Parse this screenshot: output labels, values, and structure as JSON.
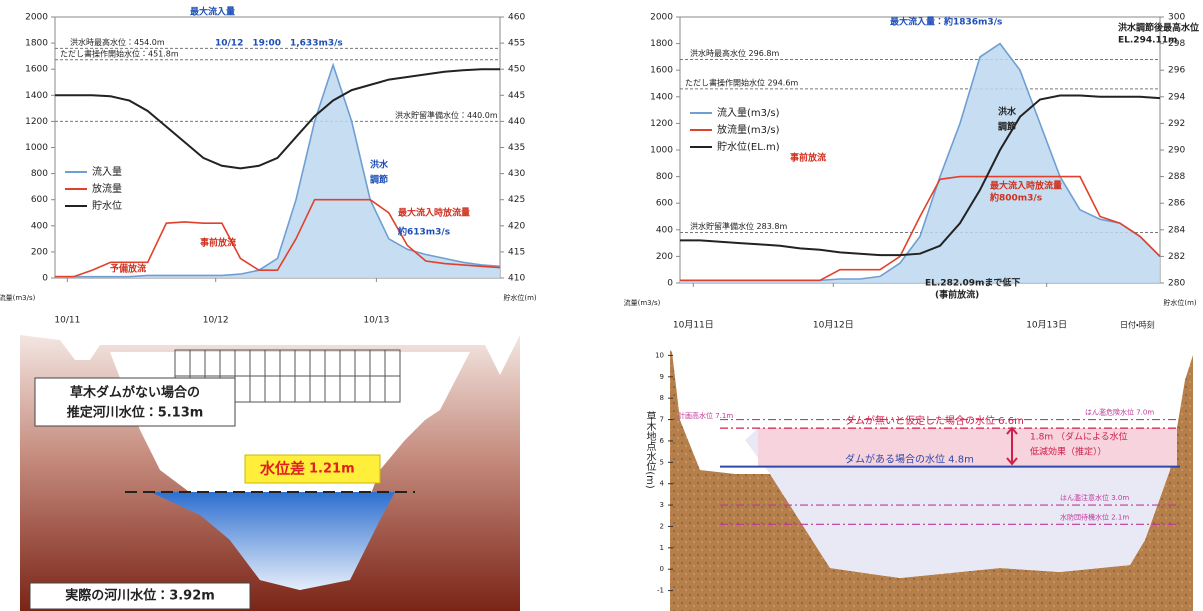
{
  "chart_data": [
    {
      "type": "line",
      "x": [
        0,
        3,
        6,
        9,
        12,
        15,
        18,
        21,
        24,
        27,
        30,
        33,
        36,
        39,
        42,
        45,
        48,
        51,
        54,
        57,
        60,
        63,
        66,
        69,
        72
      ],
      "xlim": [
        0,
        72
      ],
      "xticks": [
        {
          "value": 2,
          "label": "10/11"
        },
        {
          "value": 26,
          "label": "10/12"
        },
        {
          "value": 52,
          "label": "10/13"
        }
      ],
      "ylim": [
        0,
        2000
      ],
      "yticks": [
        0,
        200,
        400,
        600,
        800,
        1000,
        1200,
        1400,
        1600,
        1800,
        2000
      ],
      "y2lim": [
        410,
        460
      ],
      "y2ticks": [
        410,
        415,
        420,
        425,
        430,
        435,
        440,
        445,
        450,
        455,
        460
      ],
      "y_label": "流量(m3/s)",
      "y2_label": "貯水位(m)",
      "series": [
        {
          "name": "流入量",
          "color": "#6f9fd2",
          "fill": "#bdd7ee",
          "values": [
            10,
            10,
            10,
            10,
            10,
            20,
            20,
            20,
            20,
            20,
            30,
            60,
            150,
            600,
            1200,
            1633,
            1200,
            600,
            300,
            220,
            180,
            150,
            120,
            100,
            90
          ]
        },
        {
          "name": "放流量",
          "color": "#e0412c",
          "values": [
            10,
            10,
            60,
            120,
            120,
            120,
            420,
            430,
            420,
            420,
            150,
            60,
            60,
            300,
            600,
            600,
            600,
            600,
            500,
            250,
            130,
            110,
            100,
            90,
            80
          ]
        },
        {
          "name": "貯水位",
          "color": "#222222",
          "axis": "y2",
          "values": [
            445,
            445,
            445,
            444.8,
            444,
            442,
            439,
            436,
            433,
            431.5,
            431,
            431.5,
            433,
            437,
            441,
            444,
            446,
            447,
            448,
            448.5,
            449,
            449.5,
            449.8,
            450,
            450
          ]
        }
      ],
      "reference_lines": [
        {
          "value": 454,
          "label": "洪水時最高水位：454.0m"
        },
        {
          "value": 451.8,
          "label": "ただし書操作開始水位：451.8m"
        },
        {
          "value": 440,
          "label": "洪水貯留準備水位：440.0m"
        }
      ],
      "annotations": [
        "最大流入量",
        "10/12　19:00　1,633m3/s",
        "洪水",
        "調節",
        "事前放流",
        "予備放流",
        "最大流入時放流量",
        "約613m3/s"
      ]
    },
    {
      "type": "line",
      "x": [
        0,
        3,
        6,
        9,
        12,
        15,
        18,
        21,
        24,
        27,
        30,
        33,
        36,
        39,
        42,
        45,
        48,
        51,
        54,
        57,
        60,
        63,
        66,
        69,
        72
      ],
      "xlim": [
        0,
        72
      ],
      "xticks": [
        {
          "value": 2,
          "label": "10月11日"
        },
        {
          "value": 23,
          "label": "10月12日"
        },
        {
          "value": 55,
          "label": "10月13日"
        }
      ],
      "x_label": "日付・時刻",
      "ylim": [
        0,
        2000
      ],
      "yticks": [
        0,
        200,
        400,
        600,
        800,
        1000,
        1200,
        1400,
        1600,
        1800,
        2000
      ],
      "y2lim": [
        280,
        300
      ],
      "y2ticks": [
        280,
        282,
        284,
        286,
        288,
        290,
        292,
        294,
        296,
        298,
        300
      ],
      "y_label": "流量(m3/s)",
      "y2_label": "貯水位(m)",
      "series": [
        {
          "name": "流入量(m3/s)",
          "color": "#6f9fd2",
          "fill": "#bdd7ee",
          "values": [
            20,
            20,
            20,
            20,
            20,
            20,
            20,
            20,
            30,
            30,
            50,
            150,
            350,
            800,
            1200,
            1700,
            1800,
            1600,
            1200,
            800,
            550,
            480,
            450,
            350,
            200
          ]
        },
        {
          "name": "放流量(m3/s)",
          "color": "#e0412c",
          "values": [
            20,
            20,
            20,
            20,
            20,
            20,
            20,
            20,
            100,
            100,
            100,
            200,
            500,
            780,
            800,
            800,
            800,
            800,
            800,
            800,
            800,
            500,
            450,
            350,
            200
          ]
        },
        {
          "name": "貯水位(EL.m)",
          "color": "#222222",
          "axis": "y2",
          "values": [
            283.2,
            283.2,
            283.1,
            283,
            282.9,
            282.8,
            282.6,
            282.5,
            282.3,
            282.2,
            282.1,
            282.1,
            282.2,
            282.8,
            284.5,
            287,
            290,
            292.5,
            293.8,
            294.1,
            294.1,
            294,
            294,
            294,
            293.9
          ]
        }
      ],
      "reference_lines": [
        {
          "value": 296.8,
          "label": "洪水時最高水位 296.8m"
        },
        {
          "value": 294.6,
          "label": "ただし書操作開始水位 294.6m"
        },
        {
          "value": 283.8,
          "label": "洪水貯留準備水位 283.8m"
        }
      ],
      "annotations": [
        "最大流入量：約1836m3/s",
        "洪水",
        "調節",
        "事前放流",
        "最大流入時放流量",
        "約800m3/s",
        "EL.282.09mまで低下",
        "(事前放流)",
        "洪水調節後最高水位",
        "EL.294.11m"
      ]
    }
  ],
  "left_diagram": {
    "no_dam_label": [
      "草木ダムがない場合の",
      "推定河川水位：5.13m"
    ],
    "difference_label": "水位差",
    "difference_value": "1.21m",
    "actual_label": "実際の河川水位：3.92m"
  },
  "right_diagram": {
    "y_label": "草木地点水位(m)",
    "ylim": [
      -1.3,
      10.3
    ],
    "yticks": [
      -1,
      0,
      1,
      2,
      3,
      4,
      5,
      6,
      7,
      8,
      9,
      10
    ],
    "levels": [
      {
        "value": 7.0,
        "label": "はん濫危険水位 7.0m",
        "color": "#c0399a"
      },
      {
        "value": 6.6,
        "label": "ダムが無いと仮定した場合の水位 6.6m",
        "color": "#d0204a"
      },
      {
        "value": 4.8,
        "label": "ダムがある場合の水位 4.8m",
        "color": "#2f49a8"
      },
      {
        "value": 3.0,
        "label": "はん濫注意水位 3.0m",
        "color": "#c0399a"
      },
      {
        "value": 2.1,
        "label": "水防団待機水位 2.1m",
        "color": "#c0399a"
      }
    ],
    "left_label": "計画高水位 7.1m",
    "effect_label": [
      "1.8m （ダムによる水位",
      "低減効果（推定））"
    ]
  }
}
